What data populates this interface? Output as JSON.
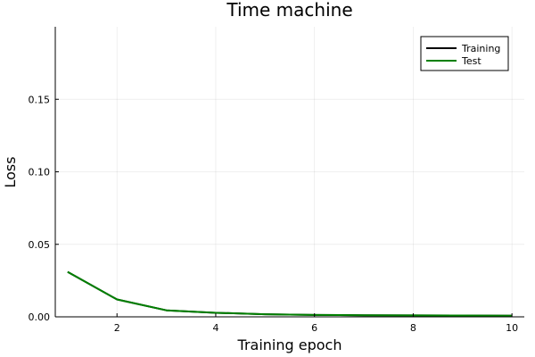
{
  "chart_data": {
    "type": "line",
    "title": "Time machine",
    "xlabel": "Training epoch",
    "ylabel": "Loss",
    "xlim": [
      0.75,
      10.25
    ],
    "ylim": [
      0,
      0.2
    ],
    "x_ticks": [
      2,
      4,
      6,
      8,
      10
    ],
    "y_ticks": [
      0.0,
      0.05,
      0.1,
      0.15
    ],
    "y_tick_labels": [
      "0.00",
      "0.05",
      "0.10",
      "0.15"
    ],
    "grid": true,
    "legend_position": "top-right",
    "x": [
      1,
      2,
      3,
      4,
      5,
      6,
      7,
      8,
      9,
      10
    ],
    "series": [
      {
        "name": "Training",
        "color": "#000000",
        "values": [
          0.031,
          0.012,
          0.0045,
          0.0028,
          0.0018,
          0.0013,
          0.0011,
          0.001,
          0.0009,
          0.0008
        ]
      },
      {
        "name": "Test",
        "color": "#008000",
        "values": [
          0.031,
          0.012,
          0.0045,
          0.0028,
          0.0018,
          0.0013,
          0.0011,
          0.001,
          0.0009,
          0.0008
        ]
      }
    ]
  }
}
